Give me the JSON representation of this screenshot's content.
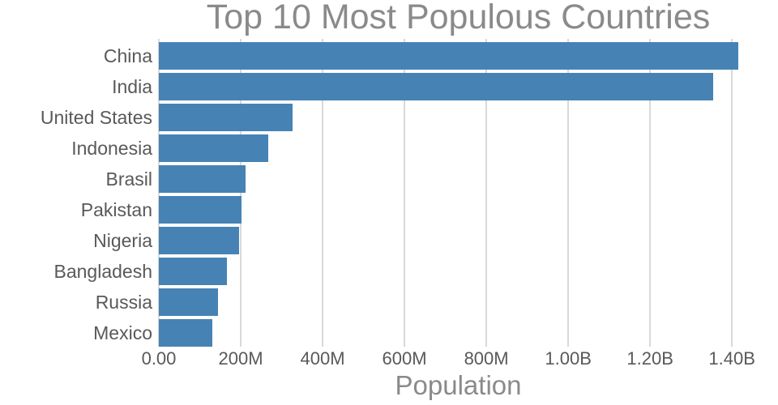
{
  "chart_data": {
    "type": "bar",
    "orientation": "horizontal",
    "title": "Top 10 Most Populous Countries",
    "xlabel": "Population",
    "ylabel": "",
    "categories": [
      "China",
      "India",
      "United States",
      "Indonesia",
      "Brasil",
      "Pakistan",
      "Nigeria",
      "Bangladesh",
      "Russia",
      "Mexico"
    ],
    "values_millions": [
      1415,
      1354,
      327,
      267,
      211,
      201,
      196,
      166,
      144,
      131
    ],
    "x_ticks": [
      {
        "value_millions": 0,
        "label": "0.00"
      },
      {
        "value_millions": 200,
        "label": "200M"
      },
      {
        "value_millions": 400,
        "label": "400M"
      },
      {
        "value_millions": 600,
        "label": "600M"
      },
      {
        "value_millions": 800,
        "label": "800M"
      },
      {
        "value_millions": 1000,
        "label": "1.00B"
      },
      {
        "value_millions": 1200,
        "label": "1.20B"
      },
      {
        "value_millions": 1400,
        "label": "1.40B"
      }
    ],
    "xlim_millions": [
      0,
      1463
    ],
    "grid": "vertical-only",
    "legend": "none",
    "colors": {
      "bar": "#4683b4",
      "title": "#8a8a8a",
      "axis_label": "#8a8a8a",
      "tick_label": "#595959",
      "gridline": "#d9d9d9",
      "background": "#ffffff"
    }
  }
}
